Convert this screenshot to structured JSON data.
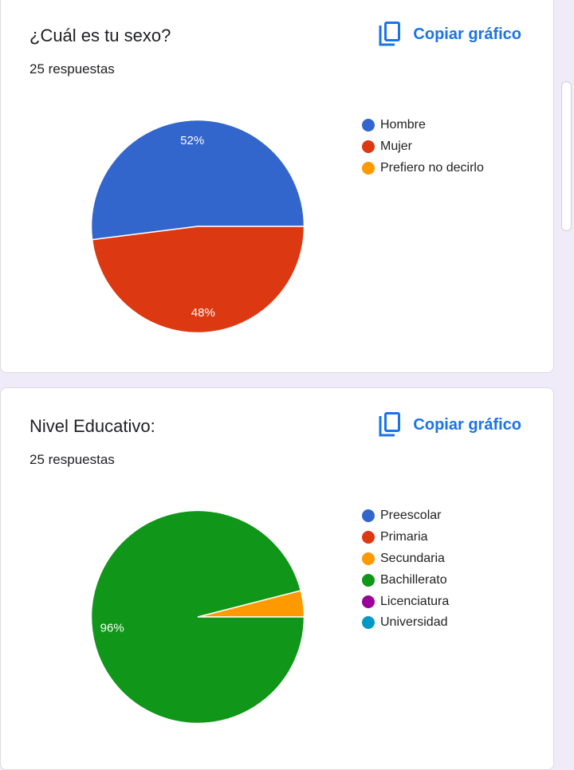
{
  "cards": [
    {
      "title": "¿Cuál es tu sexo?",
      "responses": "25 respuestas",
      "copy_label": "Copiar gráfico"
    },
    {
      "title": "Nivel Educativo:",
      "responses": "25 respuestas",
      "copy_label": "Copiar gráfico"
    }
  ],
  "icons": {
    "copy": "copy-icon"
  },
  "colors": {
    "accent": "#1a73e8",
    "page_background": "#f0ebf8"
  },
  "chart_data": [
    {
      "type": "pie",
      "title": "¿Cuál es tu sexo?",
      "categories": [
        "Hombre",
        "Mujer",
        "Prefiero no decirlo"
      ],
      "values": [
        52,
        48,
        0
      ],
      "labels": [
        "52%",
        "48%",
        ""
      ],
      "colors": [
        "#3366cc",
        "#dc3912",
        "#ff9900"
      ],
      "legend_position": "right"
    },
    {
      "type": "pie",
      "title": "Nivel Educativo:",
      "categories": [
        "Preescolar",
        "Primaria",
        "Secundaria",
        "Bachillerato",
        "Licenciatura",
        "Universidad"
      ],
      "values": [
        0,
        0,
        4,
        96,
        0,
        0
      ],
      "labels": [
        "",
        "",
        "",
        "96%",
        "",
        ""
      ],
      "colors": [
        "#3366cc",
        "#dc3912",
        "#ff9900",
        "#109618",
        "#990099",
        "#0099c6"
      ],
      "legend_position": "right"
    }
  ]
}
